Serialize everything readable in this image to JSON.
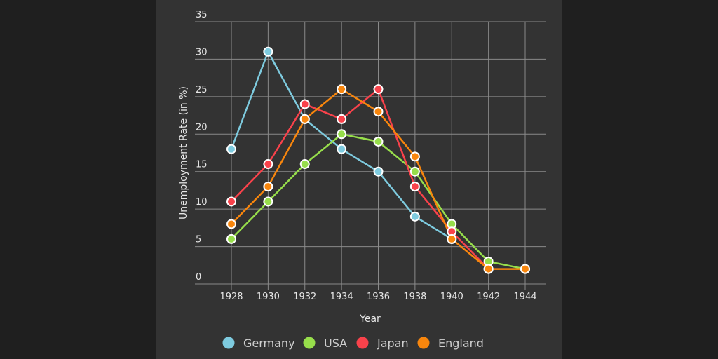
{
  "chart_data": {
    "type": "line",
    "xlabel": "Year",
    "ylabel": "Unemployment Rate (in %)",
    "x": [
      1928,
      1930,
      1932,
      1934,
      1936,
      1938,
      1940,
      1942,
      1944
    ],
    "ylim": [
      0,
      35
    ],
    "yticks": [
      0,
      5,
      10,
      15,
      20,
      25,
      30,
      35
    ],
    "grid": true,
    "legend_position": "bottom",
    "series": [
      {
        "name": "Germany",
        "color": "#7ecbdf",
        "values": [
          18,
          31,
          22,
          18,
          15,
          9,
          6,
          null,
          null
        ]
      },
      {
        "name": "USA",
        "color": "#97de4b",
        "values": [
          6,
          11,
          16,
          20,
          19,
          15,
          8,
          3,
          2
        ]
      },
      {
        "name": "Japan",
        "color": "#f9424b",
        "values": [
          11,
          16,
          24,
          22,
          26,
          13,
          7,
          2,
          null
        ]
      },
      {
        "name": "England",
        "color": "#f8860d",
        "values": [
          8,
          13,
          22,
          26,
          23,
          17,
          6,
          2,
          2
        ]
      }
    ]
  }
}
